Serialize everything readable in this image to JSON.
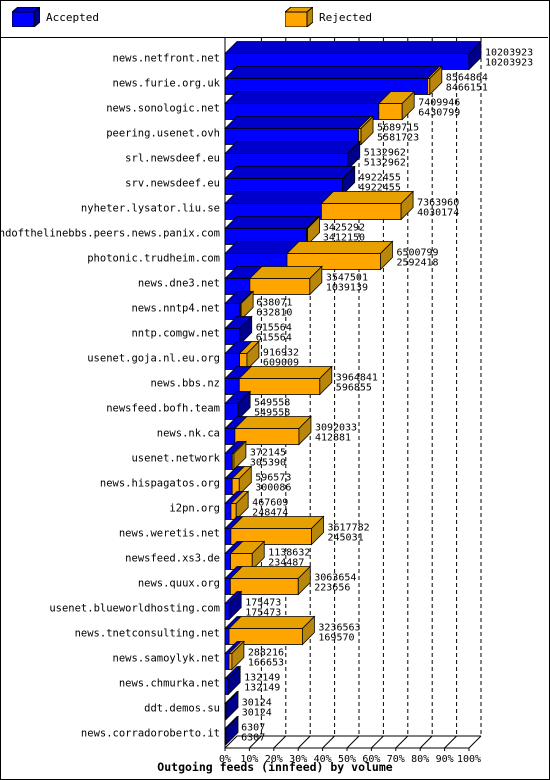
{
  "legend": {
    "accepted_label": "Accepted",
    "rejected_label": "Rejected"
  },
  "colors": {
    "accepted": "#0000ff",
    "rejected": "#ffa500",
    "accepted_side": "#00008b",
    "rejected_side": "#b8860b"
  },
  "chart_data": {
    "type": "bar",
    "orientation": "horizontal",
    "stacked": true,
    "title": "Outgoing feeds (innfeed) by volume",
    "x_ticks": [
      "0%",
      "10%",
      "20%",
      "30%",
      "40%",
      "50%",
      "60%",
      "70%",
      "80%",
      "90%",
      "100%"
    ],
    "xlim": [
      0,
      10203923
    ],
    "categories": [
      "news.netfront.net",
      "news.furie.org.uk",
      "news.sonologic.net",
      "peering.usenet.ovh",
      "srl.newsdeef.eu",
      "srv.newsdeef.eu",
      "nyheter.lysator.liu.se",
      "endofthelinebbs.peers.news.panix.com",
      "photonic.trudheim.com",
      "news.dne3.net",
      "news.nntp4.net",
      "nntp.comgw.net",
      "usenet.goja.nl.eu.org",
      "news.bbs.nz",
      "newsfeed.bofh.team",
      "news.nk.ca",
      "usenet.network",
      "news.hispagatos.org",
      "i2pn.org",
      "news.weretis.net",
      "newsfeed.xs3.de",
      "news.quux.org",
      "usenet.blueworldhosting.com",
      "news.tnetconsulting.net",
      "news.samoylyk.net",
      "news.chmurka.net",
      "ddt.demos.su",
      "news.corradoroberto.it"
    ],
    "series": [
      {
        "name": "Accepted",
        "values": [
          10203923,
          8466151,
          6430799,
          5581723,
          5132962,
          4922455,
          4030174,
          3412150,
          2592418,
          1039139,
          632810,
          615564,
          609009,
          596855,
          549558,
          412881,
          305390,
          300086,
          248474,
          245031,
          234487,
          223656,
          175473,
          169570,
          166653,
          132149,
          30124,
          6307
        ]
      },
      {
        "name": "Rejected",
        "values": [
          0,
          98713,
          979147,
          107992,
          0,
          0,
          3333786,
          13142,
          3908381,
          2508362,
          5261,
          0,
          307923,
          3367986,
          0,
          2679152,
          66755,
          296487,
          219135,
          3372751,
          904145,
          2839998,
          0,
          3066993,
          121563,
          0,
          0,
          0
        ]
      }
    ],
    "totals": [
      10203923,
      8564864,
      7409946,
      5689715,
      5132962,
      4922455,
      7363960,
      3425292,
      6500799,
      3547501,
      638071,
      615564,
      916932,
      3964841,
      549558,
      3092033,
      372145,
      596573,
      467609,
      3617782,
      1138632,
      3063654,
      175473,
      3236563,
      288216,
      132149,
      30124,
      6307
    ],
    "value_labels": [
      [
        "10203923",
        "10203923"
      ],
      [
        "8564864",
        "8466151"
      ],
      [
        "7409946",
        "6430799"
      ],
      [
        "5689715",
        "5581723"
      ],
      [
        "5132962",
        "5132962"
      ],
      [
        "4922455",
        "4922455"
      ],
      [
        "7363960",
        "4030174"
      ],
      [
        "3425292",
        "3412150"
      ],
      [
        "6500799",
        "2592418"
      ],
      [
        "3547501",
        "1039139"
      ],
      [
        "638071",
        "632810"
      ],
      [
        "615564",
        "615564"
      ],
      [
        "916932",
        "609009"
      ],
      [
        "3964841",
        "596855"
      ],
      [
        "549558",
        "549558"
      ],
      [
        "3092033",
        "412881"
      ],
      [
        "372145",
        "305390"
      ],
      [
        "596573",
        "300086"
      ],
      [
        "467609",
        "248474"
      ],
      [
        "3617782",
        "245031"
      ],
      [
        "1138632",
        "234487"
      ],
      [
        "3063654",
        "223656"
      ],
      [
        "175473",
        "175473"
      ],
      [
        "3236563",
        "169570"
      ],
      [
        "288216",
        "166653"
      ],
      [
        "132149",
        "132149"
      ],
      [
        "30124",
        "30124"
      ],
      [
        "6307",
        "6307"
      ]
    ]
  }
}
